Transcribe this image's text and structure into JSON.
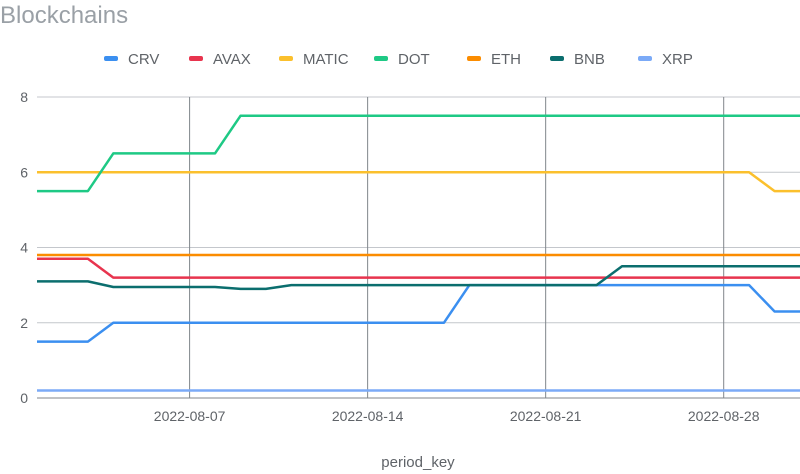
{
  "chart_data": {
    "type": "line",
    "title": "Blockchains",
    "xlabel": "period_key",
    "ylabel": "",
    "x_start": "2022-08-01",
    "x_end": "2022-08-31",
    "x_ticks": [
      "2022-08-07",
      "2022-08-14",
      "2022-08-21",
      "2022-08-28"
    ],
    "ylim": [
      0,
      8
    ],
    "y_ticks": [
      0,
      2,
      4,
      6,
      8
    ],
    "grid": true,
    "legend_position": "top",
    "series": [
      {
        "name": "CRV",
        "color": "#3b8ff0",
        "points": [
          [
            "2022-08-01",
            1.5
          ],
          [
            "2022-08-03",
            1.5
          ],
          [
            "2022-08-04",
            2.0
          ],
          [
            "2022-08-17",
            2.0
          ],
          [
            "2022-08-18",
            3.0
          ],
          [
            "2022-08-29",
            3.0
          ],
          [
            "2022-08-30",
            2.3
          ],
          [
            "2022-08-31",
            2.3
          ]
        ]
      },
      {
        "name": "AVAX",
        "color": "#e8344e",
        "points": [
          [
            "2022-08-01",
            3.7
          ],
          [
            "2022-08-03",
            3.7
          ],
          [
            "2022-08-04",
            3.2
          ],
          [
            "2022-08-31",
            3.2
          ]
        ]
      },
      {
        "name": "MATIC",
        "color": "#fbc02d",
        "points": [
          [
            "2022-08-01",
            6.0
          ],
          [
            "2022-08-29",
            6.0
          ],
          [
            "2022-08-30",
            5.5
          ],
          [
            "2022-08-31",
            5.5
          ]
        ]
      },
      {
        "name": "DOT",
        "color": "#1ec985",
        "points": [
          [
            "2022-08-01",
            5.5
          ],
          [
            "2022-08-03",
            5.5
          ],
          [
            "2022-08-04",
            6.5
          ],
          [
            "2022-08-08",
            6.5
          ],
          [
            "2022-08-09",
            7.5
          ],
          [
            "2022-08-31",
            7.5
          ]
        ]
      },
      {
        "name": "ETH",
        "color": "#fb8c00",
        "points": [
          [
            "2022-08-01",
            3.8
          ],
          [
            "2022-08-31",
            3.8
          ]
        ]
      },
      {
        "name": "BNB",
        "color": "#0b6e6e",
        "points": [
          [
            "2022-08-01",
            3.1
          ],
          [
            "2022-08-03",
            3.1
          ],
          [
            "2022-08-04",
            2.95
          ],
          [
            "2022-08-08",
            2.95
          ],
          [
            "2022-08-09",
            2.9
          ],
          [
            "2022-08-10",
            2.9
          ],
          [
            "2022-08-11",
            3.0
          ],
          [
            "2022-08-23",
            3.0
          ],
          [
            "2022-08-24",
            3.5
          ],
          [
            "2022-08-31",
            3.5
          ]
        ]
      },
      {
        "name": "XRP",
        "color": "#7baaf7",
        "points": [
          [
            "2022-08-01",
            0.2
          ],
          [
            "2022-08-31",
            0.2
          ]
        ]
      }
    ]
  }
}
